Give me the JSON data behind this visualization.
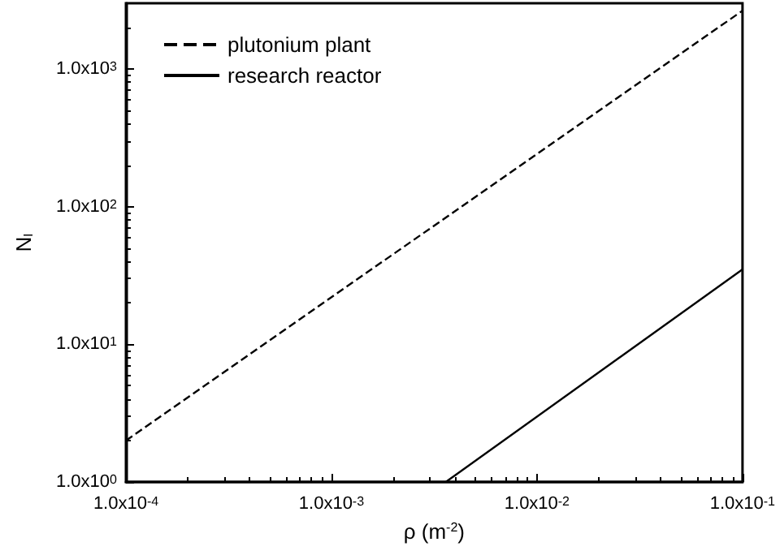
{
  "chart_data": {
    "type": "line",
    "xlabel": "ρ (m$^{-2}$)",
    "ylabel": "N$_{I}$",
    "log": "xy",
    "grid": false,
    "legend": "top left",
    "marker": "none",
    "xlim": [
      0.0001,
      0.1
    ],
    "ylim": [
      1,
      3000
    ],
    "xticks": [
      {
        "value": 0.0001,
        "label": "1.0x10$^{-4}$"
      },
      {
        "value": 0.001,
        "label": "1.0x10$^{-3}$"
      },
      {
        "value": 0.01,
        "label": "1.0x10$^{-2}$"
      },
      {
        "value": 0.1,
        "label": "1.0x10$^{-1}$"
      }
    ],
    "yticks": [
      {
        "value": 1,
        "label": "1.0x10$^{0}$"
      },
      {
        "value": 10,
        "label": "1.0x10$^{1}$"
      },
      {
        "value": 100,
        "label": "1.0x10$^{2}$"
      },
      {
        "value": 1000,
        "label": "1.0x10$^{3}$"
      }
    ],
    "series": [
      {
        "name": "plutonium plant",
        "color": "#000000",
        "line_style": "dashed",
        "x": [
          0.0001,
          0.1
        ],
        "values": [
          2,
          2650
        ]
      },
      {
        "name": "research reactor",
        "color": "#000000",
        "line_style": "solid",
        "x": [
          0.0036,
          0.1
        ],
        "values": [
          1,
          35
        ]
      }
    ]
  }
}
